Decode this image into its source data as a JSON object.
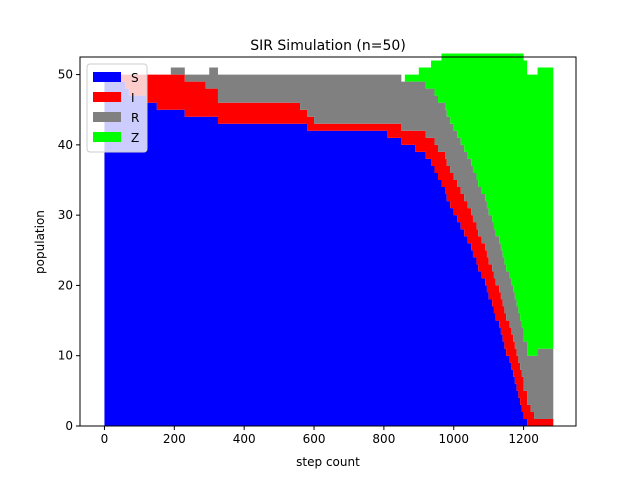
{
  "chart_data": {
    "type": "area",
    "stacked": true,
    "step": true,
    "title": "SIR Simulation (n=50)",
    "xlabel": "step count",
    "ylabel": "population",
    "xlim": [
      -70,
      1350
    ],
    "ylim": [
      0,
      52.5
    ],
    "xticks": [
      0,
      200,
      400,
      600,
      800,
      1000,
      1200
    ],
    "yticks": [
      0,
      10,
      20,
      30,
      40,
      50
    ],
    "legend_position": "top-left",
    "grid": false,
    "x_end": 1285,
    "series": [
      {
        "name": "S",
        "color": "#0000ff",
        "points": [
          [
            0,
            49
          ],
          [
            60,
            48
          ],
          [
            70,
            47
          ],
          [
            120,
            46
          ],
          [
            150,
            45
          ],
          [
            230,
            44
          ],
          [
            325,
            43
          ],
          [
            580,
            42
          ],
          [
            810,
            41
          ],
          [
            850,
            40
          ],
          [
            890,
            39
          ],
          [
            920,
            38
          ],
          [
            935,
            37
          ],
          [
            945,
            36
          ],
          [
            955,
            35
          ],
          [
            965,
            34
          ],
          [
            975,
            33
          ],
          [
            980,
            32
          ],
          [
            990,
            31
          ],
          [
            1000,
            30
          ],
          [
            1010,
            29
          ],
          [
            1020,
            28
          ],
          [
            1030,
            27
          ],
          [
            1040,
            26
          ],
          [
            1050,
            25
          ],
          [
            1055,
            24
          ],
          [
            1065,
            23
          ],
          [
            1070,
            22
          ],
          [
            1080,
            21
          ],
          [
            1090,
            20
          ],
          [
            1095,
            19
          ],
          [
            1100,
            18
          ],
          [
            1110,
            17
          ],
          [
            1115,
            16
          ],
          [
            1120,
            15
          ],
          [
            1130,
            14
          ],
          [
            1135,
            13
          ],
          [
            1140,
            12
          ],
          [
            1145,
            11
          ],
          [
            1150,
            10
          ],
          [
            1160,
            9
          ],
          [
            1165,
            8
          ],
          [
            1170,
            7
          ],
          [
            1175,
            6
          ],
          [
            1180,
            5
          ],
          [
            1185,
            4
          ],
          [
            1190,
            3
          ],
          [
            1195,
            2
          ],
          [
            1200,
            1
          ],
          [
            1210,
            0
          ]
        ]
      },
      {
        "name": "I",
        "color": "#ff0000",
        "points": [
          [
            0,
            1
          ],
          [
            60,
            2
          ],
          [
            70,
            3
          ],
          [
            120,
            4
          ],
          [
            150,
            5
          ],
          [
            230,
            5
          ],
          [
            290,
            4
          ],
          [
            325,
            3
          ],
          [
            340,
            3
          ],
          [
            560,
            2
          ],
          [
            580,
            2
          ],
          [
            600,
            1
          ],
          [
            810,
            2
          ],
          [
            850,
            2
          ],
          [
            890,
            3
          ],
          [
            920,
            3
          ],
          [
            935,
            4
          ],
          [
            945,
            4
          ],
          [
            955,
            4
          ],
          [
            965,
            5
          ],
          [
            975,
            5
          ],
          [
            980,
            5
          ],
          [
            990,
            5
          ],
          [
            1000,
            5
          ],
          [
            1010,
            5
          ],
          [
            1020,
            5
          ],
          [
            1030,
            5
          ],
          [
            1040,
            5
          ],
          [
            1050,
            5
          ],
          [
            1055,
            5
          ],
          [
            1065,
            5
          ],
          [
            1070,
            5
          ],
          [
            1080,
            5
          ],
          [
            1090,
            5
          ],
          [
            1095,
            5
          ],
          [
            1100,
            5
          ],
          [
            1110,
            5
          ],
          [
            1115,
            5
          ],
          [
            1120,
            5
          ],
          [
            1130,
            5
          ],
          [
            1135,
            5
          ],
          [
            1140,
            5
          ],
          [
            1145,
            5
          ],
          [
            1150,
            5
          ],
          [
            1160,
            5
          ],
          [
            1165,
            5
          ],
          [
            1170,
            5
          ],
          [
            1175,
            5
          ],
          [
            1180,
            5
          ],
          [
            1185,
            5
          ],
          [
            1190,
            5
          ],
          [
            1195,
            5
          ],
          [
            1200,
            4
          ],
          [
            1210,
            3
          ],
          [
            1220,
            2
          ],
          [
            1230,
            1
          ]
        ]
      },
      {
        "name": "R",
        "color": "#808080",
        "points": [
          [
            0,
            0
          ],
          [
            150,
            0
          ],
          [
            190,
            1
          ],
          [
            230,
            1
          ],
          [
            290,
            2
          ],
          [
            300,
            3
          ],
          [
            325,
            4
          ],
          [
            340,
            4
          ],
          [
            560,
            5
          ],
          [
            580,
            6
          ],
          [
            600,
            7
          ],
          [
            810,
            7
          ],
          [
            860,
            7
          ],
          [
            900,
            7
          ],
          [
            920,
            7
          ],
          [
            935,
            7
          ],
          [
            945,
            7
          ],
          [
            955,
            7
          ],
          [
            965,
            7
          ],
          [
            975,
            7
          ],
          [
            980,
            7
          ],
          [
            990,
            7
          ],
          [
            1000,
            7
          ],
          [
            1010,
            7
          ],
          [
            1020,
            7
          ],
          [
            1030,
            7
          ],
          [
            1040,
            7
          ],
          [
            1050,
            7
          ],
          [
            1055,
            7
          ],
          [
            1065,
            7
          ],
          [
            1070,
            7
          ],
          [
            1080,
            7
          ],
          [
            1090,
            7
          ],
          [
            1095,
            7
          ],
          [
            1100,
            7
          ],
          [
            1110,
            7
          ],
          [
            1115,
            7
          ],
          [
            1120,
            7
          ],
          [
            1130,
            7
          ],
          [
            1135,
            7
          ],
          [
            1140,
            7
          ],
          [
            1145,
            7
          ],
          [
            1150,
            7
          ],
          [
            1160,
            7
          ],
          [
            1165,
            7
          ],
          [
            1170,
            7
          ],
          [
            1175,
            7
          ],
          [
            1180,
            7
          ],
          [
            1185,
            7
          ],
          [
            1190,
            7
          ],
          [
            1195,
            7
          ],
          [
            1200,
            7
          ],
          [
            1210,
            7
          ],
          [
            1220,
            8
          ],
          [
            1230,
            9
          ],
          [
            1240,
            10
          ]
        ]
      },
      {
        "name": "Z",
        "color": "#00ff00",
        "points": [
          [
            0,
            0
          ],
          [
            150,
            0
          ],
          [
            190,
            0
          ],
          [
            230,
            0
          ],
          [
            290,
            0
          ],
          [
            300,
            0
          ],
          [
            325,
            0
          ],
          [
            340,
            0
          ],
          [
            560,
            0
          ],
          [
            580,
            0
          ],
          [
            600,
            0
          ],
          [
            810,
            0
          ],
          [
            860,
            1
          ],
          [
            900,
            2
          ],
          [
            920,
            3
          ],
          [
            935,
            4
          ],
          [
            945,
            5
          ],
          [
            955,
            6
          ],
          [
            965,
            7
          ],
          [
            975,
            8
          ],
          [
            980,
            9
          ],
          [
            990,
            10
          ],
          [
            1000,
            11
          ],
          [
            1010,
            12
          ],
          [
            1020,
            13
          ],
          [
            1030,
            14
          ],
          [
            1040,
            15
          ],
          [
            1050,
            16
          ],
          [
            1055,
            17
          ],
          [
            1065,
            18
          ],
          [
            1070,
            19
          ],
          [
            1080,
            20
          ],
          [
            1090,
            21
          ],
          [
            1095,
            22
          ],
          [
            1100,
            23
          ],
          [
            1110,
            24
          ],
          [
            1115,
            25
          ],
          [
            1120,
            26
          ],
          [
            1130,
            27
          ],
          [
            1135,
            28
          ],
          [
            1140,
            29
          ],
          [
            1145,
            30
          ],
          [
            1150,
            31
          ],
          [
            1160,
            32
          ],
          [
            1165,
            33
          ],
          [
            1170,
            34
          ],
          [
            1175,
            35
          ],
          [
            1180,
            36
          ],
          [
            1185,
            37
          ],
          [
            1190,
            38
          ],
          [
            1195,
            39
          ],
          [
            1200,
            40
          ],
          [
            1210,
            40
          ],
          [
            1220,
            40
          ],
          [
            1230,
            40
          ],
          [
            1240,
            40
          ]
        ]
      }
    ]
  }
}
